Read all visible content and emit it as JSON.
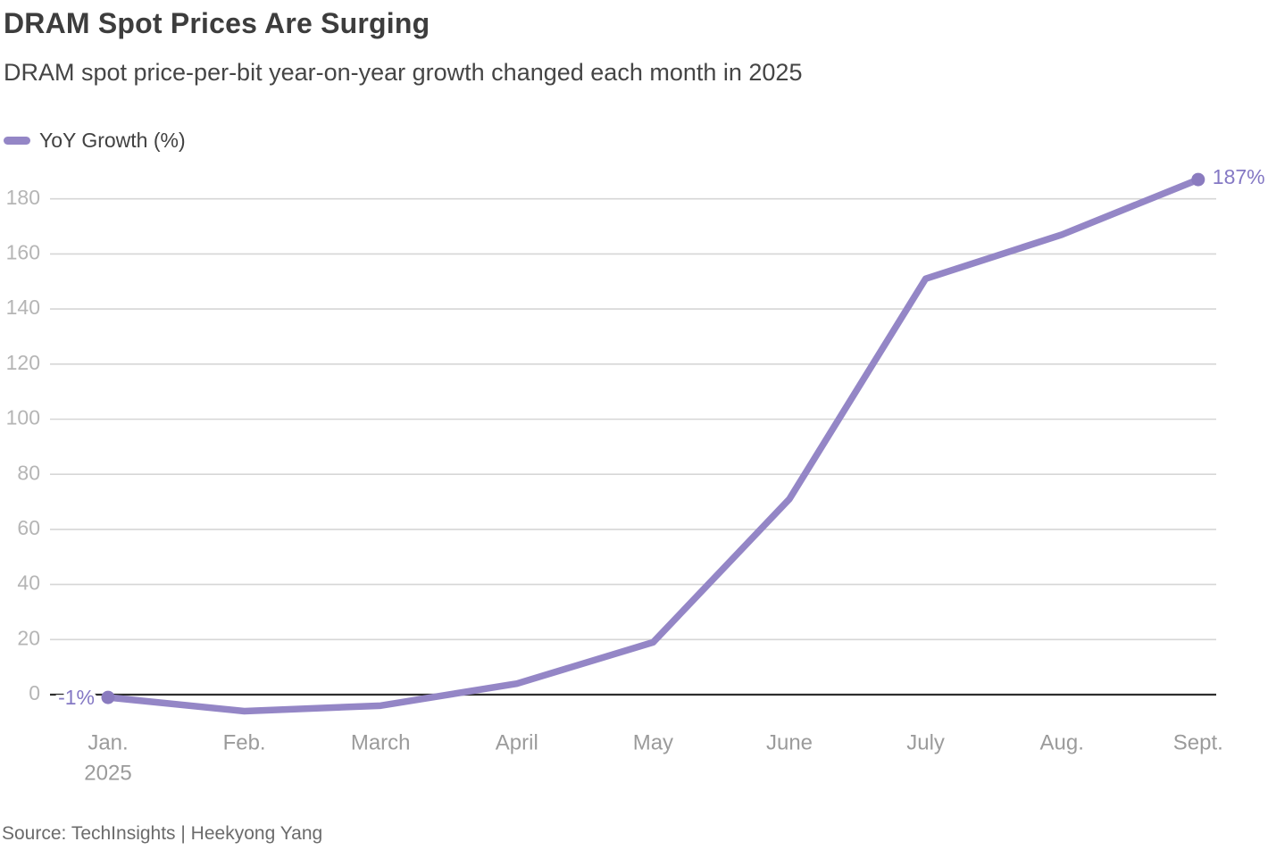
{
  "header": {
    "title": "DRAM Spot Prices Are Surging",
    "subtitle": "DRAM spot price-per-bit year-on-year growth changed each month in 2025"
  },
  "legend": {
    "label": "YoY Growth (%)",
    "swatch_color": "#9486c6"
  },
  "chart_data": {
    "type": "line",
    "title": "DRAM Spot Prices Are Surging",
    "subtitle": "DRAM spot price-per-bit year-on-year growth changed each month in 2025",
    "categories": [
      "Jan.",
      "Feb.",
      "March",
      "April",
      "May",
      "June",
      "July",
      "Aug.",
      "Sept."
    ],
    "x_axis_sublabel": {
      "index": 0,
      "text": "2025"
    },
    "series": [
      {
        "name": "YoY Growth (%)",
        "values": [
          -1,
          -6,
          -4,
          4,
          19,
          71,
          151,
          167,
          187
        ]
      }
    ],
    "yticks": [
      0,
      20,
      40,
      60,
      80,
      100,
      120,
      140,
      160,
      180
    ],
    "ylim": [
      -12,
      192
    ],
    "grid": "horizontal-only",
    "legend_position": "top-left",
    "point_labels": {
      "first": "-1%",
      "last": "187%"
    },
    "colors": {
      "line": "#9486c6",
      "endpoint_dot": "#8a7bbf",
      "point_label": "#8478c4",
      "grid_line": "#d6d6d6",
      "zero_line": "#2e2e2e",
      "y_tick_label": "#b5b5b5",
      "x_tick_label": "#9b9b9b"
    }
  },
  "footer": {
    "source": "Source: TechInsights | Heekyong Yang"
  }
}
